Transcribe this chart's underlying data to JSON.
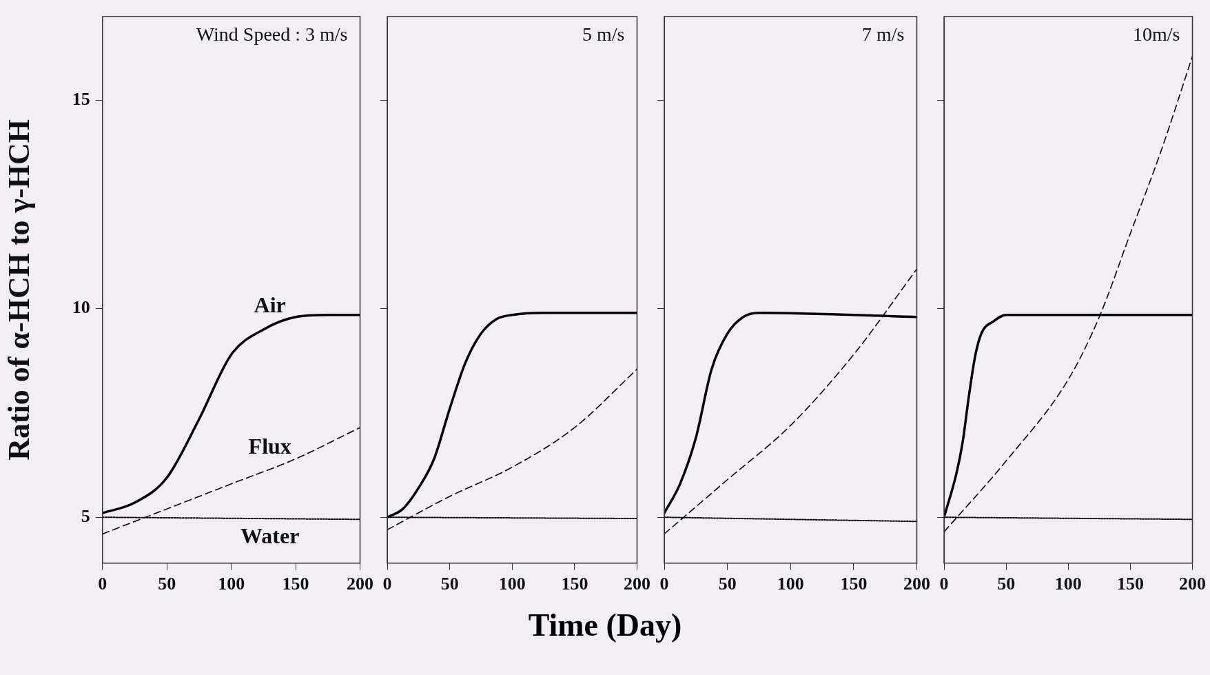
{
  "chart_data": [
    {
      "type": "line",
      "title": "Wind Speed : 3 m/s",
      "ylabel": "Ratio of α-HCH to γ-HCH",
      "xlabel": "Time  (Day)",
      "xlim": [
        0,
        200
      ],
      "xticks": [
        0,
        50,
        100,
        150,
        200
      ],
      "ylim": [
        3.9,
        17
      ],
      "yticks": [
        5,
        10,
        15
      ],
      "grid": false,
      "legend": false,
      "marker": "none",
      "series": [
        {
          "name": "Air",
          "color": "#000000",
          "line_style": "solid",
          "x": [
            0,
            25,
            50,
            75,
            100,
            125,
            150,
            175,
            200
          ],
          "values": [
            5.1,
            5.35,
            5.95,
            7.35,
            8.9,
            9.5,
            9.8,
            9.85,
            9.85
          ]
        },
        {
          "name": "Flux",
          "color": "#000000",
          "line_style": "dashed",
          "x": [
            0,
            50,
            100,
            150,
            200
          ],
          "values": [
            4.6,
            5.2,
            5.8,
            6.4,
            7.15
          ]
        },
        {
          "name": "Water",
          "color": "#000000",
          "line_style": "dotted",
          "x": [
            0,
            200
          ],
          "values": [
            5.0,
            4.95
          ]
        }
      ]
    },
    {
      "type": "line",
      "title": "5 m/s",
      "xlim": [
        0,
        200
      ],
      "xticks": [
        0,
        50,
        100,
        150,
        200
      ],
      "ylim": [
        3.9,
        17
      ],
      "yticks": [
        5,
        10,
        15
      ],
      "tick_labels": "x",
      "grid": false,
      "legend": false,
      "marker": "none",
      "series": [
        {
          "color": "#000000",
          "line_style": "solid",
          "x": [
            0,
            12.5,
            25,
            37.5,
            50,
            62.5,
            75,
            87.5,
            100,
            125,
            200
          ],
          "values": [
            5.0,
            5.2,
            5.7,
            6.4,
            7.6,
            8.7,
            9.4,
            9.75,
            9.85,
            9.9,
            9.9
          ]
        },
        {
          "color": "#000000",
          "line_style": "dashed",
          "x": [
            0,
            50,
            100,
            150,
            200
          ],
          "values": [
            4.7,
            5.5,
            6.2,
            7.15,
            8.55
          ]
        },
        {
          "color": "#000000",
          "line_style": "dotted",
          "x": [
            0,
            200
          ],
          "values": [
            5.0,
            4.97
          ]
        }
      ]
    },
    {
      "type": "line",
      "title": "7 m/s",
      "xlim": [
        0,
        200
      ],
      "xticks": [
        0,
        50,
        100,
        150,
        200
      ],
      "ylim": [
        3.9,
        17
      ],
      "yticks": [
        5,
        10,
        15
      ],
      "tick_labels": "x",
      "grid": false,
      "legend": false,
      "marker": "none",
      "series": [
        {
          "color": "#000000",
          "line_style": "solid",
          "x": [
            0,
            12.5,
            25,
            37.5,
            50,
            62.5,
            75,
            200
          ],
          "values": [
            5.1,
            5.8,
            6.9,
            8.55,
            9.4,
            9.8,
            9.9,
            9.8
          ]
        },
        {
          "color": "#000000",
          "line_style": "dashed",
          "x": [
            0,
            50,
            100,
            150,
            200
          ],
          "values": [
            4.6,
            5.9,
            7.2,
            8.9,
            10.95
          ]
        },
        {
          "color": "#000000",
          "line_style": "dotted",
          "x": [
            0,
            200
          ],
          "values": [
            5.0,
            4.9
          ]
        }
      ]
    },
    {
      "type": "line",
      "title": "10m/s",
      "xlim": [
        0,
        200
      ],
      "xticks": [
        0,
        50,
        100,
        150,
        200
      ],
      "ylim": [
        3.9,
        17
      ],
      "yticks": [
        5,
        10,
        15
      ],
      "tick_labels": "x",
      "grid": false,
      "legend": false,
      "marker": "none",
      "series": [
        {
          "color": "#000000",
          "line_style": "solid",
          "x": [
            0,
            10,
            15,
            20,
            25,
            30,
            40,
            50,
            200
          ],
          "values": [
            5.0,
            6.05,
            6.8,
            7.9,
            8.85,
            9.4,
            9.7,
            9.85,
            9.85
          ]
        },
        {
          "color": "#000000",
          "line_style": "dashed",
          "x": [
            0,
            50,
            100,
            125,
            150,
            175,
            200
          ],
          "values": [
            4.65,
            6.35,
            8.3,
            9.8,
            11.8,
            13.8,
            16.05
          ]
        },
        {
          "color": "#000000",
          "line_style": "dotted",
          "x": [
            0,
            200
          ],
          "values": [
            5.0,
            4.95
          ]
        }
      ]
    }
  ]
}
